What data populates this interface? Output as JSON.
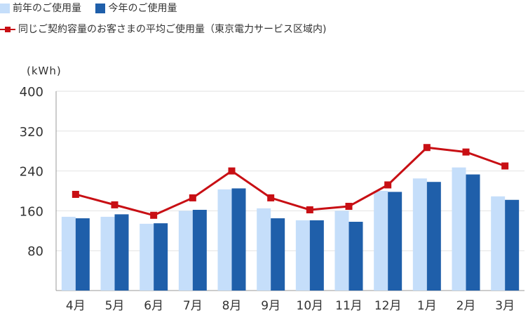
{
  "legend": {
    "prev_year": "前年のご使用量",
    "this_year": "今年のご使用量",
    "average": "同じご契約容量のお客さまの平均ご使用量（東京電力サービス区域内)"
  },
  "colors": {
    "prev_year": "#c5defa",
    "this_year": "#1f5faa",
    "average": "#c80f14",
    "grid": "#e2e2e2",
    "axis": "#999999",
    "text": "#333333"
  },
  "chart_data": {
    "type": "bar",
    "ylabel": "(kWh)",
    "ylim": [
      0,
      400
    ],
    "yticks": [
      "80",
      "160",
      "240",
      "320",
      "400"
    ],
    "categories": [
      "4月",
      "5月",
      "6月",
      "7月",
      "8月",
      "9月",
      "10月",
      "11月",
      "12月",
      "1月",
      "2月",
      "3月"
    ],
    "grid": true,
    "series": [
      {
        "name": "前年のご使用量",
        "type": "bar",
        "values": [
          148,
          148,
          134,
          160,
          203,
          165,
          141,
          160,
          200,
          225,
          247,
          189
        ]
      },
      {
        "name": "今年のご使用量",
        "type": "bar",
        "values": [
          145,
          153,
          135,
          162,
          205,
          145,
          141,
          138,
          198,
          218,
          233,
          182
        ]
      },
      {
        "name": "同じご契約容量のお客さまの平均ご使用量（東京電力サービス区域内)",
        "type": "line",
        "values": [
          193,
          172,
          151,
          186,
          240,
          186,
          162,
          169,
          212,
          287,
          278,
          250
        ]
      }
    ]
  }
}
